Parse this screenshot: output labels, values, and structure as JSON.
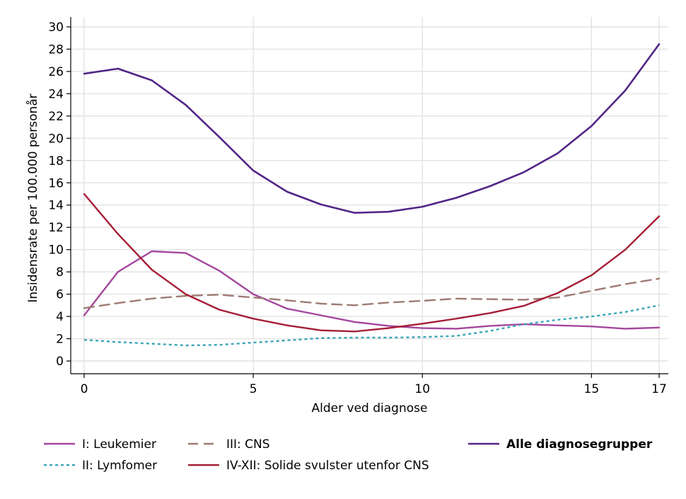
{
  "chart_data": {
    "type": "line",
    "xlabel": "Alder ved diagnose",
    "ylabel": "Insidensrate per 100.000 personår",
    "xlim": [
      0,
      17
    ],
    "ylim": [
      0,
      30
    ],
    "xticks": [
      0,
      5,
      10,
      15,
      17
    ],
    "yticks": [
      0,
      2,
      4,
      6,
      8,
      10,
      12,
      14,
      16,
      18,
      20,
      22,
      24,
      26,
      28,
      30
    ],
    "grid": true,
    "legend_position": "bottom",
    "x": [
      0,
      1,
      2,
      3,
      4,
      5,
      6,
      7,
      8,
      9,
      10,
      11,
      12,
      13,
      14,
      15,
      16,
      17
    ],
    "series": [
      {
        "name": "I: Leukemier",
        "color": "#a3479e",
        "dash": "solid",
        "bold": false,
        "values": [
          4.1,
          8.0,
          9.85,
          9.7,
          8.1,
          6.0,
          4.7,
          4.1,
          3.5,
          3.15,
          2.95,
          2.9,
          3.15,
          3.3,
          3.2,
          3.1,
          2.9,
          3.0
        ]
      },
      {
        "name": "II: Lymfomer",
        "color": "#3aa5b8",
        "dash": "dotted",
        "bold": false,
        "values": [
          1.9,
          1.7,
          1.55,
          1.4,
          1.45,
          1.65,
          1.85,
          2.05,
          2.1,
          2.1,
          2.15,
          2.25,
          2.7,
          3.3,
          3.7,
          4.0,
          4.4,
          5.0
        ]
      },
      {
        "name": "III: CNS",
        "color": "#9e7b73",
        "dash": "dashed",
        "bold": false,
        "values": [
          4.75,
          5.2,
          5.6,
          5.85,
          5.95,
          5.7,
          5.45,
          5.15,
          5.0,
          5.25,
          5.4,
          5.6,
          5.55,
          5.5,
          5.7,
          6.3,
          6.9,
          7.4
        ]
      },
      {
        "name": "IV-XII: Solide svulster utenfor CNS",
        "color": "#a51e36",
        "dash": "solid",
        "bold": false,
        "values": [
          15.0,
          11.4,
          8.2,
          6.0,
          4.6,
          3.8,
          3.2,
          2.75,
          2.65,
          2.95,
          3.35,
          3.8,
          4.3,
          4.95,
          6.1,
          7.7,
          10.0,
          13.0
        ]
      },
      {
        "name": "Alle diagnosegrupper",
        "color": "#522587",
        "dash": "solid",
        "bold": true,
        "values": [
          25.8,
          26.25,
          25.2,
          23.0,
          20.1,
          17.1,
          15.2,
          14.05,
          13.3,
          13.4,
          13.85,
          14.65,
          15.7,
          16.95,
          18.65,
          21.1,
          24.3,
          28.45
        ]
      }
    ]
  }
}
